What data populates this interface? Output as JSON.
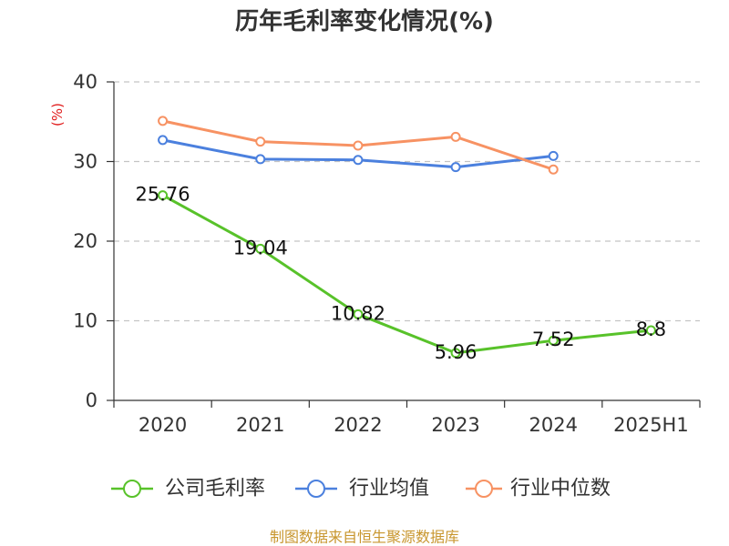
{
  "footer": "制图数据来自恒生聚源数据库",
  "chart_data": {
    "type": "line",
    "title": "历年毛利率变化情况(%)",
    "xlabel": "",
    "ylabel": "(%)",
    "categories": [
      "2020",
      "2021",
      "2022",
      "2023",
      "2024",
      "2025H1"
    ],
    "ylim": [
      0,
      40
    ],
    "yticks": [
      0,
      10,
      20,
      30,
      40
    ],
    "grid": true,
    "legend_position": "bottom",
    "series": [
      {
        "name": "公司毛利率",
        "color": "#58c22a",
        "show_labels": true,
        "values": [
          25.76,
          19.04,
          10.82,
          5.96,
          7.52,
          8.8
        ]
      },
      {
        "name": "行业均值",
        "color": "#4b80de",
        "show_labels": false,
        "values": [
          32.7,
          30.3,
          30.2,
          29.3,
          30.7,
          null
        ]
      },
      {
        "name": "行业中位数",
        "color": "#f79263",
        "show_labels": false,
        "values": [
          35.1,
          32.5,
          32.0,
          33.1,
          29.0,
          null
        ]
      }
    ]
  }
}
